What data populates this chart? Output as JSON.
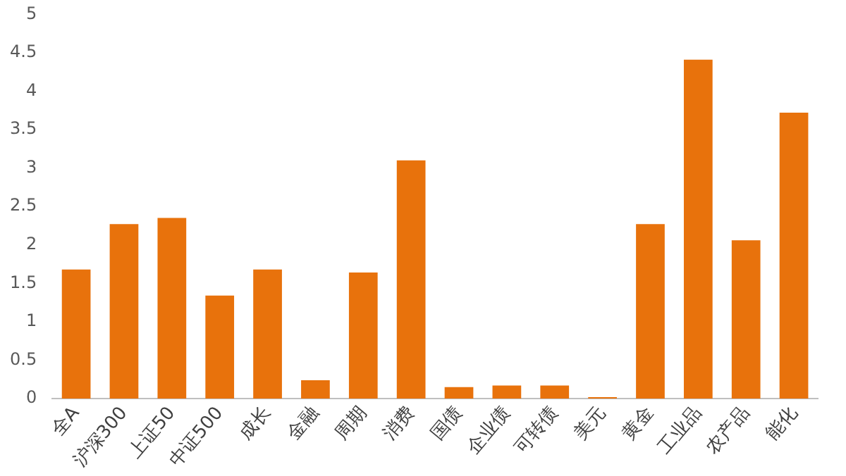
{
  "chart_data": {
    "type": "bar",
    "categories": [
      "全A",
      "沪深300",
      "上证50",
      "中证500",
      "成长",
      "金融",
      "周期",
      "消费",
      "国债",
      "企业债",
      "可转债",
      "美元",
      "黄金",
      "工业品",
      "农产品",
      "能化"
    ],
    "values": [
      1.68,
      2.27,
      2.35,
      1.34,
      1.68,
      0.24,
      1.64,
      3.1,
      0.15,
      0.17,
      0.17,
      0.02,
      2.27,
      4.41,
      2.06,
      3.72
    ],
    "color": "#e8720c",
    "ylim": [
      0,
      5
    ],
    "yticks": [
      0,
      0.5,
      1,
      1.5,
      2,
      2.5,
      3,
      3.5,
      4,
      4.5,
      5
    ],
    "grid": false,
    "legend": false
  }
}
